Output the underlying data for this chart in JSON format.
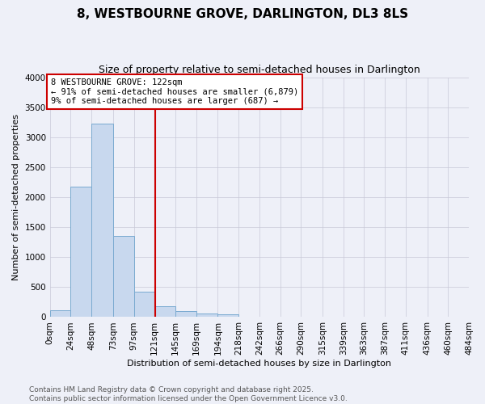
{
  "title": "8, WESTBOURNE GROVE, DARLINGTON, DL3 8LS",
  "subtitle": "Size of property relative to semi-detached houses in Darlington",
  "xlabel": "Distribution of semi-detached houses by size in Darlington",
  "ylabel": "Number of semi-detached properties",
  "property_size": 122,
  "annotation_line1": "8 WESTBOURNE GROVE: 122sqm",
  "annotation_line2": "← 91% of semi-detached houses are smaller (6,879)",
  "annotation_line3": "9% of semi-detached houses are larger (687) →",
  "footer_line1": "Contains HM Land Registry data © Crown copyright and database right 2025.",
  "footer_line2": "Contains public sector information licensed under the Open Government Licence v3.0.",
  "bar_color": "#c8d8ee",
  "bar_edge_color": "#7aaad0",
  "vline_color": "#cc0000",
  "annotation_box_edge_color": "#cc0000",
  "grid_color": "#c8c8d8",
  "background_color": "#eef0f8",
  "bins": [
    0,
    24,
    48,
    73,
    97,
    121,
    145,
    169,
    194,
    218,
    242,
    266,
    290,
    315,
    339,
    363,
    387,
    411,
    436,
    460,
    484
  ],
  "bin_labels": [
    "0sqm",
    "24sqm",
    "48sqm",
    "73sqm",
    "97sqm",
    "121sqm",
    "145sqm",
    "169sqm",
    "194sqm",
    "218sqm",
    "242sqm",
    "266sqm",
    "290sqm",
    "315sqm",
    "339sqm",
    "363sqm",
    "387sqm",
    "411sqm",
    "436sqm",
    "460sqm",
    "484sqm"
  ],
  "bar_heights": [
    120,
    2170,
    3230,
    1360,
    420,
    175,
    100,
    60,
    50,
    0,
    0,
    0,
    0,
    0,
    0,
    0,
    0,
    0,
    0,
    0
  ],
  "ylim": [
    0,
    4000
  ],
  "yticks": [
    0,
    500,
    1000,
    1500,
    2000,
    2500,
    3000,
    3500,
    4000
  ],
  "title_fontsize": 11,
  "subtitle_fontsize": 9,
  "axis_label_fontsize": 8,
  "tick_fontsize": 7.5,
  "annotation_fontsize": 7.5,
  "footer_fontsize": 6.5
}
